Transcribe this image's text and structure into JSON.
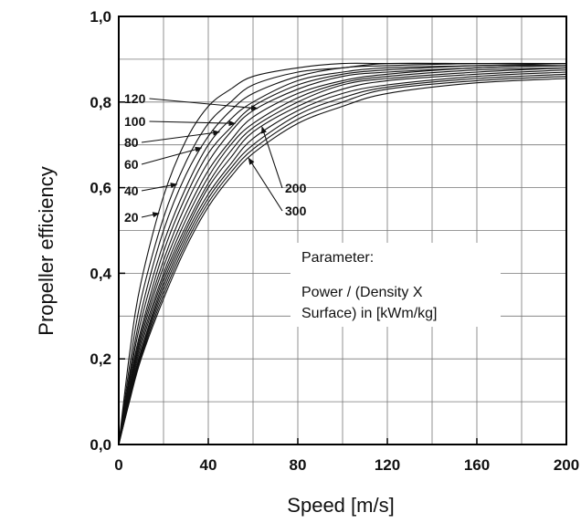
{
  "chart_data": {
    "type": "line",
    "title": "",
    "xlabel": "Speed [m/s]",
    "ylabel": "Propeller efficiency",
    "xlim": [
      0,
      200
    ],
    "ylim": [
      0,
      1.0
    ],
    "x_ticks": [
      "0",
      "40",
      "80",
      "120",
      "160",
      "200"
    ],
    "y_ticks": [
      "0,0",
      "0,2",
      "0,4",
      "0,6",
      "0,8",
      "1,0"
    ],
    "grid": true,
    "annotation": {
      "heading": "Parameter:",
      "line1": "Power / (Density X",
      "line2": "Surface) in [kWm/kg]"
    },
    "curve_labels": [
      "20",
      "40",
      "60",
      "80",
      "100",
      "120",
      "200",
      "300"
    ],
    "x": [
      0,
      5,
      10,
      20,
      30,
      40,
      50,
      60,
      80,
      100,
      120,
      160,
      200
    ],
    "series": [
      {
        "name": "20",
        "values": [
          0.0,
          0.22,
          0.38,
          0.58,
          0.71,
          0.79,
          0.83,
          0.86,
          0.88,
          0.89,
          0.89,
          0.89,
          0.89
        ]
      },
      {
        "name": "40",
        "values": [
          0.0,
          0.19,
          0.34,
          0.53,
          0.66,
          0.75,
          0.8,
          0.84,
          0.87,
          0.88,
          0.89,
          0.89,
          0.89
        ]
      },
      {
        "name": "60",
        "values": [
          0.0,
          0.17,
          0.31,
          0.5,
          0.63,
          0.72,
          0.78,
          0.82,
          0.86,
          0.88,
          0.885,
          0.89,
          0.89
        ]
      },
      {
        "name": "80",
        "values": [
          0.0,
          0.16,
          0.29,
          0.47,
          0.6,
          0.7,
          0.76,
          0.8,
          0.85,
          0.87,
          0.88,
          0.885,
          0.89
        ]
      },
      {
        "name": "100",
        "values": [
          0.0,
          0.15,
          0.27,
          0.45,
          0.58,
          0.68,
          0.74,
          0.79,
          0.84,
          0.865,
          0.875,
          0.885,
          0.885
        ]
      },
      {
        "name": "120",
        "values": [
          0.0,
          0.14,
          0.26,
          0.43,
          0.56,
          0.66,
          0.73,
          0.78,
          0.83,
          0.86,
          0.87,
          0.88,
          0.885
        ]
      },
      {
        "name": "",
        "values": [
          0.0,
          0.135,
          0.25,
          0.415,
          0.54,
          0.64,
          0.71,
          0.765,
          0.82,
          0.85,
          0.865,
          0.88,
          0.885
        ]
      },
      {
        "name": "",
        "values": [
          0.0,
          0.13,
          0.24,
          0.4,
          0.525,
          0.625,
          0.7,
          0.75,
          0.81,
          0.845,
          0.86,
          0.875,
          0.88
        ]
      },
      {
        "name": "",
        "values": [
          0.0,
          0.125,
          0.23,
          0.39,
          0.51,
          0.61,
          0.685,
          0.74,
          0.8,
          0.84,
          0.855,
          0.87,
          0.88
        ]
      },
      {
        "name": "200",
        "values": [
          0.0,
          0.12,
          0.22,
          0.38,
          0.5,
          0.6,
          0.67,
          0.73,
          0.79,
          0.83,
          0.85,
          0.865,
          0.875
        ]
      },
      {
        "name": "",
        "values": [
          0.0,
          0.115,
          0.215,
          0.37,
          0.49,
          0.585,
          0.655,
          0.715,
          0.78,
          0.82,
          0.84,
          0.86,
          0.87
        ]
      },
      {
        "name": "",
        "values": [
          0.0,
          0.11,
          0.21,
          0.36,
          0.48,
          0.575,
          0.645,
          0.7,
          0.77,
          0.81,
          0.835,
          0.855,
          0.865
        ]
      },
      {
        "name": "",
        "values": [
          0.0,
          0.108,
          0.205,
          0.35,
          0.47,
          0.565,
          0.635,
          0.69,
          0.76,
          0.8,
          0.83,
          0.85,
          0.86
        ]
      },
      {
        "name": "300",
        "values": [
          0.0,
          0.105,
          0.2,
          0.34,
          0.46,
          0.555,
          0.625,
          0.68,
          0.75,
          0.79,
          0.82,
          0.845,
          0.855
        ]
      }
    ]
  }
}
